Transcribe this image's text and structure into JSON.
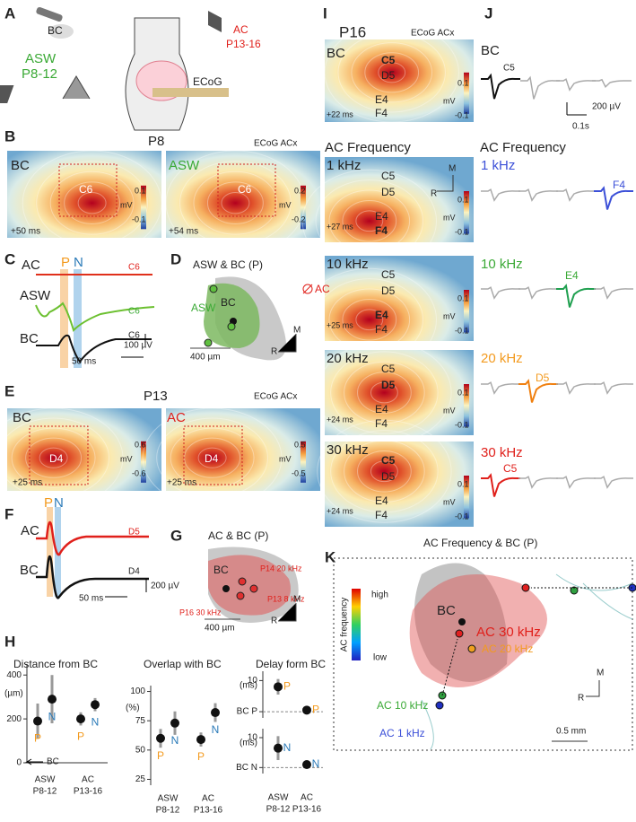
{
  "A": {
    "label": "A",
    "bc": "BC",
    "asw": "ASW",
    "asw_age": "P8-12",
    "ac": "AC",
    "ac_age": "P13-16",
    "ecog": "ECoG"
  },
  "B": {
    "label": "B",
    "age": "P8",
    "recording": "ECoG ACx",
    "maps": [
      {
        "stimulus": "BC",
        "barrel": "C6",
        "scale_max": 0.1,
        "unit": "mV",
        "scale_min": -0.1,
        "latency": "+50 ms"
      },
      {
        "stimulus": "ASW",
        "barrel": "C6",
        "scale_max": 0.2,
        "unit": "mV",
        "scale_min": -0.2,
        "latency": "+54 ms"
      }
    ]
  },
  "C": {
    "label": "C",
    "traces": [
      {
        "name": "AC",
        "site": "C6"
      },
      {
        "name": "ASW",
        "site": "C6"
      },
      {
        "name": "BC",
        "site": "C6"
      }
    ],
    "p": "P",
    "n": "N",
    "scale_y": "100 µV",
    "scale_x": "50 ms"
  },
  "D": {
    "label": "D",
    "title": "ASW & BC (P)",
    "ac": "AC",
    "asw": "ASW",
    "bc": "BC",
    "scale": "400 µm",
    "m": "M",
    "r": "R"
  },
  "E": {
    "label": "E",
    "age": "P13",
    "recording": "ECoG ACx",
    "maps": [
      {
        "stimulus": "BC",
        "barrel": "D4",
        "scale_max": 0.6,
        "unit": "mV",
        "scale_min": -0.6,
        "latency": "+25 ms"
      },
      {
        "stimulus": "AC",
        "barrel": "D4",
        "scale_max": 0.5,
        "unit": "mV",
        "scale_min": -0.5,
        "latency": "+25 ms"
      }
    ]
  },
  "F": {
    "label": "F",
    "traces": [
      {
        "name": "AC",
        "site": "D5"
      },
      {
        "name": "BC",
        "site": "D4"
      }
    ],
    "p": "P",
    "n": "N",
    "scale_y": "200 µV",
    "scale_x": "50 ms"
  },
  "G": {
    "label": "G",
    "title": "AC & BC (P)",
    "bc": "BC",
    "points": [
      "P14 20 kHz",
      "P13 8 kHz",
      "P16 30 kHz"
    ],
    "scale": "400 µm",
    "m": "M",
    "r": "R"
  },
  "H": {
    "label": "H",
    "charts": [
      {
        "title": "Distance from BC",
        "unit": "(µm)",
        "baseline": "BC",
        "categories": [
          [
            "ASW",
            "P8-12"
          ],
          [
            "AC",
            "P13-16"
          ]
        ],
        "ylim": [
          0,
          450
        ],
        "yticks": [
          0,
          200,
          400
        ],
        "series": [
          {
            "name": "P",
            "color": "#f39a1e",
            "values": [
              190,
              200
            ],
            "errors": [
              80,
              30
            ]
          },
          {
            "name": "N",
            "color": "#2a7ab8",
            "values": [
              290,
              265
            ],
            "errors": [
              110,
              30
            ]
          }
        ]
      },
      {
        "title": "Overlap with BC",
        "unit": "(%)",
        "categories": [
          [
            "ASW",
            "P8-12"
          ],
          [
            "AC",
            "P13-16"
          ]
        ],
        "ylim": [
          20,
          105
        ],
        "yticks": [
          25,
          50,
          75,
          100
        ],
        "series": [
          {
            "name": "P",
            "color": "#f39a1e",
            "values": [
              60,
              59
            ],
            "errors": [
              8,
              6
            ]
          },
          {
            "name": "N",
            "color": "#2a7ab8",
            "values": [
              73,
              82
            ],
            "errors": [
              10,
              8
            ]
          }
        ]
      },
      {
        "title": "Delay form BC",
        "unit": "(ms)",
        "categories": [
          [
            "ASW",
            "P8-12"
          ],
          [
            "AC",
            "P13-16"
          ]
        ],
        "subplots": [
          {
            "ylim": [
              -2,
              13
            ],
            "yticks": [
              {
                "value": 0,
                "label": "BC P"
              },
              10
            ],
            "series": [
              {
                "name": "P",
                "color": "#f39a1e",
                "values": [
                  8,
                  0.5
                ],
                "errors": [
                  2.5,
                  0.8
                ]
              }
            ]
          },
          {
            "ylim": [
              -2,
              13
            ],
            "yticks": [
              {
                "value": 0,
                "label": "BC N"
              },
              10
            ],
            "series": [
              {
                "name": "N",
                "color": "#2a7ab8",
                "values": [
                  6.5,
                  1
                ],
                "errors": [
                  4,
                  1
                ]
              }
            ]
          }
        ]
      }
    ]
  },
  "I": {
    "label": "I",
    "age": "P16",
    "recording": "ECoG ACx",
    "bc_map": {
      "stimulus": "BC",
      "barrels": [
        "C5",
        "D5",
        "E4",
        "F4"
      ],
      "scale_max": 0.1,
      "unit": "mV",
      "scale_min": -0.1,
      "latency": "+22 ms"
    },
    "section": "AC Frequency",
    "m": "M",
    "r": "R",
    "freq_maps": [
      {
        "frequency": "1 kHz",
        "barrels": [
          "C5",
          "D5",
          "E4",
          "F4"
        ],
        "scale_max": 0.1,
        "unit": "mV",
        "scale_min": -0.1,
        "latency": "+27 ms"
      },
      {
        "frequency": "10 kHz",
        "barrels": [
          "C5",
          "D5",
          "E4",
          "F4"
        ],
        "scale_max": 0.1,
        "unit": "mV",
        "scale_min": -0.1,
        "latency": "+25 ms"
      },
      {
        "frequency": "20 kHz",
        "barrels": [
          "C5",
          "D5",
          "E4",
          "F4"
        ],
        "scale_max": 0.1,
        "unit": "mV",
        "scale_min": -0.1,
        "latency": "+24 ms"
      },
      {
        "frequency": "30 kHz",
        "barrels": [
          "C5",
          "D5",
          "E4",
          "F4"
        ],
        "scale_max": 0.1,
        "unit": "mV",
        "scale_min": -0.1,
        "latency": "+24 ms"
      }
    ]
  },
  "J": {
    "label": "J",
    "bc": "BC",
    "bc_site": "C5",
    "scale_y": "200 µV",
    "scale_x": "0.1s",
    "section": "AC Frequency",
    "rows": [
      {
        "frequency": "1 kHz",
        "site": "F4"
      },
      {
        "frequency": "10 kHz",
        "site": "E4"
      },
      {
        "frequency": "20 kHz",
        "site": "D5"
      },
      {
        "frequency": "30 kHz",
        "site": "C5"
      }
    ]
  },
  "K": {
    "label": "K",
    "title": "AC Frequency & BC (P)",
    "colorbar_high": "high",
    "colorbar_low": "low",
    "colorbar_title": "AC frequency",
    "bc": "BC",
    "points": [
      "AC 30 kHz",
      "AC 20 kHz",
      "AC 10 kHz",
      "AC 1 kHz"
    ],
    "m": "M",
    "r": "R",
    "scale": "0.5 mm"
  }
}
